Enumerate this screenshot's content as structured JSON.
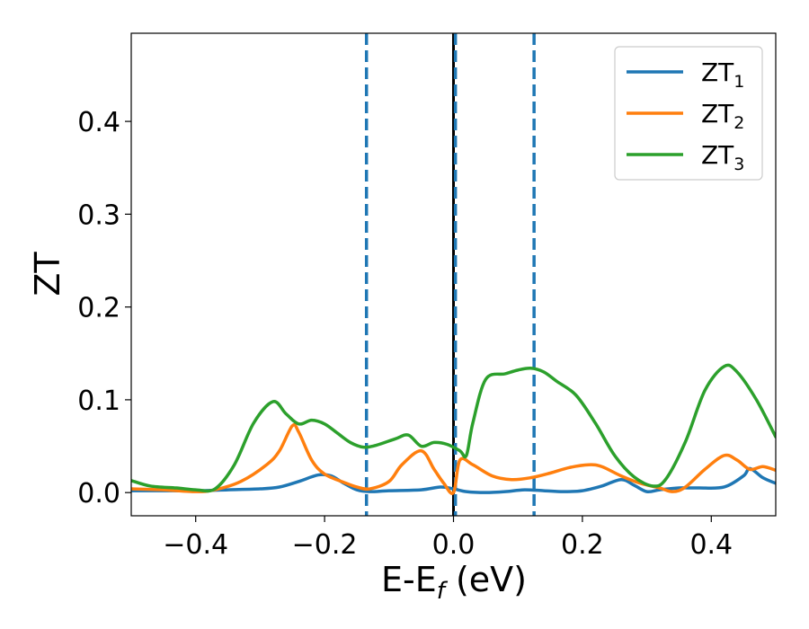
{
  "chart_data": {
    "type": "line",
    "xlabel": "E-E",
    "xlabel_sub": "f",
    "xlabel_unit": " (eV)",
    "ylabel": "ZT",
    "xlim": [
      -0.5,
      0.5
    ],
    "ylim": [
      -0.025,
      0.495
    ],
    "xticks": [
      -0.4,
      -0.2,
      0.0,
      0.2,
      0.4
    ],
    "xtick_labels": [
      "−0.4",
      "−0.2",
      "0.0",
      "0.2",
      "0.4"
    ],
    "yticks": [
      0.0,
      0.1,
      0.2,
      0.3,
      0.4
    ],
    "ytick_labels": [
      "0.0",
      "0.1",
      "0.2",
      "0.3",
      "0.4"
    ],
    "grid": false,
    "legend_position": "top-right",
    "vertical_lines": [
      {
        "x": -0.135,
        "style": "dashed",
        "color": "#1f77b4"
      },
      {
        "x": 0.0,
        "style": "solid",
        "color": "#000000"
      },
      {
        "x": 0.003,
        "style": "dashed",
        "color": "#1f77b4"
      },
      {
        "x": 0.125,
        "style": "dashed",
        "color": "#1f77b4"
      }
    ],
    "series": [
      {
        "name": "ZT",
        "name_sub": "1",
        "color": "#1f77b4",
        "points": [
          [
            -0.5,
            0.002
          ],
          [
            -0.45,
            0.002
          ],
          [
            -0.4,
            0.002
          ],
          [
            -0.35,
            0.003
          ],
          [
            -0.3,
            0.004
          ],
          [
            -0.27,
            0.006
          ],
          [
            -0.24,
            0.012
          ],
          [
            -0.21,
            0.019
          ],
          [
            -0.19,
            0.018
          ],
          [
            -0.17,
            0.01
          ],
          [
            -0.15,
            0.003
          ],
          [
            -0.13,
            0.001
          ],
          [
            -0.1,
            0.002
          ],
          [
            -0.05,
            0.003
          ],
          [
            -0.02,
            0.006
          ],
          [
            0.0,
            0.004
          ],
          [
            0.02,
            0.001
          ],
          [
            0.05,
            0.0
          ],
          [
            0.08,
            0.001
          ],
          [
            0.11,
            0.003
          ],
          [
            0.14,
            0.002
          ],
          [
            0.17,
            0.001
          ],
          [
            0.2,
            0.002
          ],
          [
            0.23,
            0.007
          ],
          [
            0.26,
            0.014
          ],
          [
            0.28,
            0.008
          ],
          [
            0.3,
            0.001
          ],
          [
            0.32,
            0.003
          ],
          [
            0.35,
            0.005
          ],
          [
            0.38,
            0.005
          ],
          [
            0.42,
            0.006
          ],
          [
            0.45,
            0.018
          ],
          [
            0.46,
            0.026
          ],
          [
            0.48,
            0.016
          ],
          [
            0.5,
            0.01
          ]
        ]
      },
      {
        "name": "ZT",
        "name_sub": "2",
        "color": "#ff7f0e",
        "points": [
          [
            -0.5,
            0.004
          ],
          [
            -0.45,
            0.003
          ],
          [
            -0.4,
            0.001
          ],
          [
            -0.37,
            0.003
          ],
          [
            -0.33,
            0.012
          ],
          [
            -0.29,
            0.03
          ],
          [
            -0.27,
            0.045
          ],
          [
            -0.25,
            0.072
          ],
          [
            -0.24,
            0.065
          ],
          [
            -0.22,
            0.035
          ],
          [
            -0.2,
            0.02
          ],
          [
            -0.17,
            0.011
          ],
          [
            -0.15,
            0.006
          ],
          [
            -0.13,
            0.004
          ],
          [
            -0.1,
            0.012
          ],
          [
            -0.08,
            0.03
          ],
          [
            -0.05,
            0.045
          ],
          [
            -0.03,
            0.025
          ],
          [
            -0.015,
            0.01
          ],
          [
            0.0,
            0.0
          ],
          [
            0.01,
            0.035
          ],
          [
            0.03,
            0.03
          ],
          [
            0.06,
            0.018
          ],
          [
            0.09,
            0.014
          ],
          [
            0.12,
            0.016
          ],
          [
            0.15,
            0.021
          ],
          [
            0.18,
            0.027
          ],
          [
            0.21,
            0.03
          ],
          [
            0.23,
            0.028
          ],
          [
            0.26,
            0.018
          ],
          [
            0.29,
            0.01
          ],
          [
            0.32,
            0.005
          ],
          [
            0.34,
            0.001
          ],
          [
            0.36,
            0.006
          ],
          [
            0.39,
            0.025
          ],
          [
            0.42,
            0.04
          ],
          [
            0.44,
            0.035
          ],
          [
            0.46,
            0.025
          ],
          [
            0.48,
            0.028
          ],
          [
            0.5,
            0.024
          ]
        ]
      },
      {
        "name": "ZT",
        "name_sub": "3",
        "color": "#2ca02c",
        "points": [
          [
            -0.5,
            0.013
          ],
          [
            -0.47,
            0.007
          ],
          [
            -0.43,
            0.005
          ],
          [
            -0.4,
            0.003
          ],
          [
            -0.37,
            0.004
          ],
          [
            -0.34,
            0.03
          ],
          [
            -0.31,
            0.075
          ],
          [
            -0.28,
            0.098
          ],
          [
            -0.26,
            0.085
          ],
          [
            -0.24,
            0.074
          ],
          [
            -0.22,
            0.078
          ],
          [
            -0.2,
            0.074
          ],
          [
            -0.18,
            0.064
          ],
          [
            -0.16,
            0.054
          ],
          [
            -0.14,
            0.049
          ],
          [
            -0.12,
            0.051
          ],
          [
            -0.09,
            0.058
          ],
          [
            -0.07,
            0.062
          ],
          [
            -0.05,
            0.05
          ],
          [
            -0.03,
            0.054
          ],
          [
            -0.01,
            0.052
          ],
          [
            0.01,
            0.045
          ],
          [
            0.02,
            0.04
          ],
          [
            0.03,
            0.075
          ],
          [
            0.05,
            0.122
          ],
          [
            0.08,
            0.128
          ],
          [
            0.1,
            0.132
          ],
          [
            0.12,
            0.134
          ],
          [
            0.14,
            0.13
          ],
          [
            0.16,
            0.12
          ],
          [
            0.19,
            0.105
          ],
          [
            0.22,
            0.075
          ],
          [
            0.25,
            0.04
          ],
          [
            0.28,
            0.017
          ],
          [
            0.31,
            0.007
          ],
          [
            0.33,
            0.015
          ],
          [
            0.36,
            0.055
          ],
          [
            0.39,
            0.11
          ],
          [
            0.42,
            0.136
          ],
          [
            0.44,
            0.13
          ],
          [
            0.47,
            0.1
          ],
          [
            0.5,
            0.06
          ]
        ]
      }
    ]
  }
}
